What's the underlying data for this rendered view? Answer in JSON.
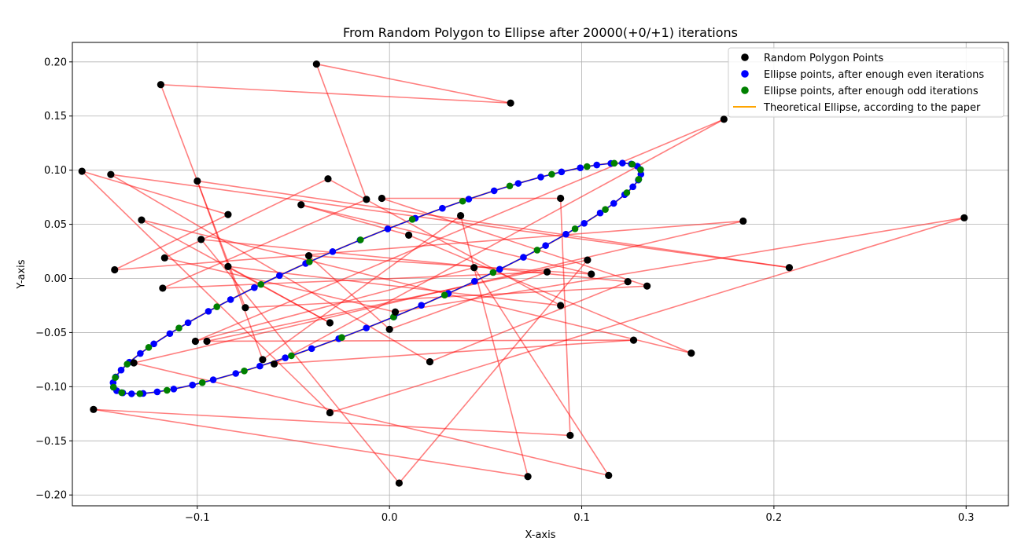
{
  "chart_data": {
    "type": "scatter",
    "title": "From Random Polygon to Ellipse after 20000(+0/+1) iterations",
    "xlabel": "X-axis",
    "ylabel": "Y-axis",
    "xlim": [
      -0.165,
      0.322
    ],
    "ylim": [
      -0.21,
      0.218
    ],
    "xticks": [
      -0.1,
      0.0,
      0.1,
      0.2,
      0.3
    ],
    "xtick_labels": [
      "−0.1",
      "0.0",
      "0.1",
      "0.2",
      "0.3"
    ],
    "yticks": [
      -0.2,
      -0.15,
      -0.1,
      -0.05,
      0.0,
      0.05,
      0.1,
      0.15,
      0.2
    ],
    "ytick_labels": [
      "−0.20",
      "−0.15",
      "−0.10",
      "−0.05",
      "0.00",
      "0.05",
      "0.10",
      "0.15",
      "0.20"
    ],
    "grid": true,
    "legend_position": "top-right",
    "colors": {
      "polygon_points": "#000000",
      "polygon_edges": "#ff0000",
      "even_points": "#0000ff",
      "odd_points": "#008000",
      "ellipse": "#ffa500"
    },
    "legend": [
      {
        "label": "Random Polygon Points",
        "kind": "marker",
        "color": "#000000"
      },
      {
        "label": "Ellipse points, after enough even iterations",
        "kind": "marker",
        "color": "#0000ff"
      },
      {
        "label": "Ellipse points, after enough odd iterations",
        "kind": "marker",
        "color": "#008000"
      },
      {
        "label": "Theoretical Ellipse, according to the paper",
        "kind": "line",
        "color": "#ffa500"
      }
    ],
    "polygon": [
      [
        -0.038,
        0.198
      ],
      [
        0.063,
        0.162
      ],
      [
        -0.119,
        0.179
      ],
      [
        -0.075,
        -0.027
      ],
      [
        0.134,
        -0.007
      ],
      [
        -0.004,
        0.074
      ],
      [
        0.089,
        0.074
      ],
      [
        0.094,
        -0.145
      ],
      [
        -0.154,
        -0.121
      ],
      [
        0.072,
        -0.183
      ],
      [
        0.037,
        0.058
      ],
      [
        -0.066,
        -0.075
      ],
      [
        -0.1,
        0.09
      ],
      [
        0.208,
        0.01
      ],
      [
        -0.145,
        0.096
      ],
      [
        0.021,
        -0.077
      ],
      [
        0.124,
        -0.003
      ],
      [
        -0.098,
        0.036
      ],
      [
        0.005,
        -0.189
      ],
      [
        0.103,
        0.017
      ],
      [
        -0.095,
        -0.058
      ],
      [
        0.127,
        -0.057
      ],
      [
        -0.06,
        -0.079
      ],
      [
        0.174,
        0.147
      ],
      [
        -0.101,
        -0.058
      ],
      [
        0.044,
        0.01
      ],
      [
        0.114,
        -0.182
      ],
      [
        -0.133,
        -0.078
      ],
      [
        0.184,
        0.053
      ],
      [
        -0.143,
        0.008
      ],
      [
        -0.084,
        0.059
      ],
      [
        -0.16,
        0.099
      ],
      [
        -0.031,
        -0.124
      ],
      [
        0.299,
        0.056
      ],
      [
        0.003,
        -0.031
      ],
      [
        -0.117,
        0.019
      ],
      [
        -0.032,
        0.092
      ],
      [
        0.089,
        -0.025
      ],
      [
        -0.084,
        0.011
      ],
      [
        -0.031,
        -0.041
      ],
      [
        -0.129,
        0.054
      ],
      [
        0.157,
        -0.069
      ],
      [
        0.01,
        0.04
      ],
      [
        -0.046,
        0.068
      ],
      [
        0.105,
        0.004
      ],
      [
        -0.042,
        0.021
      ],
      [
        0.0,
        -0.047
      ],
      [
        0.082,
        0.006
      ],
      [
        -0.118,
        -0.009
      ],
      [
        -0.012,
        0.073
      ]
    ],
    "ellipse": {
      "center": [
        -0.0065,
        0.0
      ],
      "semi_major": 0.1706,
      "semi_minor": 0.0337,
      "angle_deg": 37.2
    },
    "even_points_count": 60,
    "odd_points_count": 32
  }
}
